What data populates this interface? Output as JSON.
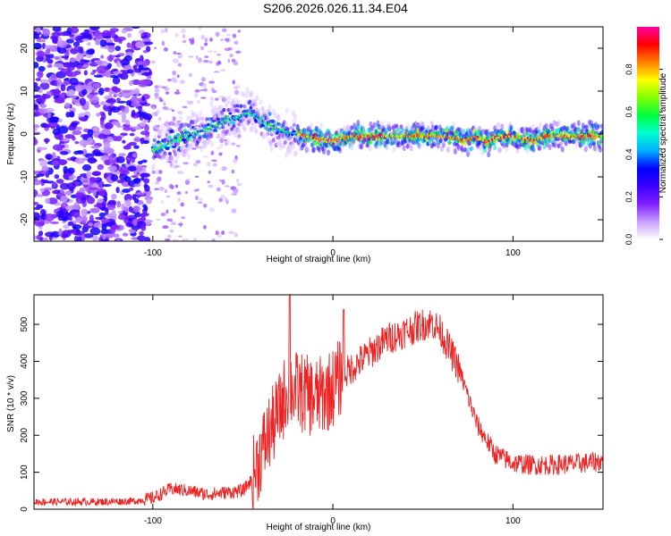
{
  "figure_title": "S206.2026.026.11.34.E04",
  "chart_data": [
    {
      "id": "spectrogram",
      "type": "heatmap",
      "xlabel": "Height of straight line (km)",
      "ylabel": "Frequency (Hz)",
      "xlim": [
        -166,
        150
      ],
      "ylim": [
        -25,
        25
      ],
      "xticks": [
        -100,
        0,
        100
      ],
      "xtick_labels": [
        "-100",
        "0",
        "100"
      ],
      "yticks": [
        -20,
        -10,
        0,
        10,
        20
      ],
      "ytick_labels": [
        "-20",
        "-10",
        "0",
        "10",
        "20"
      ],
      "colorbar": {
        "label": "Normalized spectral amplitude",
        "range": [
          0,
          1
        ],
        "ticks": [
          0.0,
          0.2,
          0.4,
          0.6,
          0.8
        ],
        "tick_labels": [
          "0.0",
          "0.2",
          "0.4",
          "0.6",
          "0.8"
        ],
        "colormap": [
          "#ffffff",
          "#c8a0ff",
          "#8020ff",
          "#3a00ff",
          "#0000ff",
          "#00b0ff",
          "#00ffd0",
          "#00ff40",
          "#80ff00",
          "#ffff00",
          "#ff8000",
          "#ff0000",
          "#ff00a0"
        ]
      },
      "ridge_line": {
        "name": "Frequency ridge",
        "x": [
          -100,
          -90,
          -80,
          -70,
          -60,
          -50,
          -45,
          -40,
          -30,
          -20,
          -10,
          0,
          10,
          30,
          60,
          75,
          80,
          85,
          90,
          100,
          110,
          120,
          150
        ],
        "y": [
          -4,
          -2,
          0,
          1,
          3,
          4.5,
          5,
          3,
          1,
          0,
          -1,
          -1.5,
          -0.5,
          -0.5,
          -0.5,
          -1.5,
          -0.5,
          -2,
          -1,
          -0.5,
          -1.5,
          -0.5,
          -0.5
        ]
      }
    },
    {
      "id": "snr",
      "type": "line",
      "xlabel": "Height of straight line (km)",
      "ylabel": "SNR (10 * v/v)",
      "xlim": [
        -166,
        150
      ],
      "ylim": [
        0,
        580
      ],
      "xticks": [
        -100,
        0,
        100
      ],
      "xtick_labels": [
        "-100",
        "0",
        "100"
      ],
      "yticks": [
        0,
        100,
        200,
        300,
        400,
        500
      ],
      "ytick_labels": [
        "0",
        "100",
        "200",
        "300",
        "400",
        "500"
      ],
      "series": [
        {
          "name": "SNR",
          "color": "#ee2222",
          "x": [
            -166,
            -150,
            -130,
            -110,
            -100,
            -90,
            -80,
            -70,
            -60,
            -50,
            -45,
            -40,
            -35,
            -30,
            -25,
            -20,
            -15,
            -10,
            -5,
            0,
            5,
            10,
            20,
            30,
            40,
            50,
            55,
            60,
            70,
            80,
            90,
            100,
            110,
            120,
            130,
            140,
            150
          ],
          "y": [
            20,
            20,
            20,
            22,
            30,
            55,
            50,
            40,
            45,
            50,
            80,
            150,
            210,
            260,
            330,
            320,
            310,
            300,
            310,
            330,
            360,
            380,
            420,
            460,
            480,
            500,
            505,
            480,
            380,
            230,
            150,
            125,
            120,
            120,
            122,
            125,
            130
          ]
        }
      ],
      "spikes": [
        {
          "x": -24,
          "y": 580
        },
        {
          "x": 6,
          "y": 540
        }
      ]
    }
  ]
}
